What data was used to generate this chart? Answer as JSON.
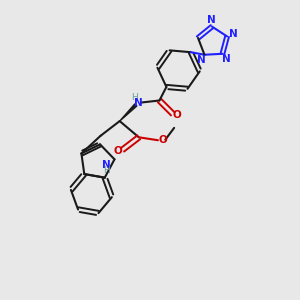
{
  "bg_color": "#e8e8e8",
  "bond_color": "#1a1a1a",
  "n_color": "#2020ff",
  "o_color": "#cc0000",
  "h_color": "#6a9a9a",
  "fig_size": [
    3.0,
    3.0
  ],
  "dpi": 100,
  "xlim": [
    0,
    10
  ],
  "ylim": [
    0,
    10
  ]
}
